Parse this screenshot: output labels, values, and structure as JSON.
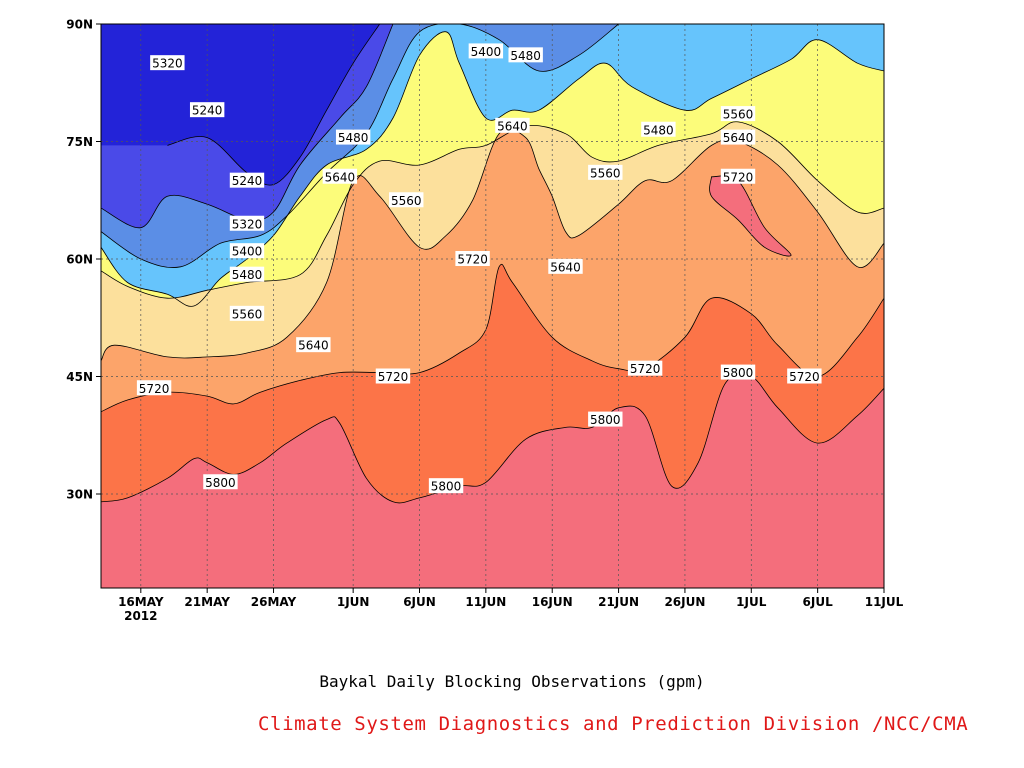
{
  "caption": {
    "title": "Baykal Daily Blocking Observations (gpm)",
    "credit": "Climate System Diagnostics and Prediction Division /NCC/CMA",
    "credit_color": "#e01818"
  },
  "chart_data": {
    "type": "contour",
    "title": "Baykal Daily Blocking Observations (gpm)",
    "xlabel": "",
    "ylabel": "",
    "x_range": [
      "2012-05-13",
      "2012-07-11"
    ],
    "y_range_deg": [
      18,
      90
    ],
    "x_ticks": [
      {
        "label": "16MAY",
        "sub": "2012",
        "date": "2012-05-16"
      },
      {
        "label": "21MAY",
        "date": "2012-05-21"
      },
      {
        "label": "26MAY",
        "date": "2012-05-26"
      },
      {
        "label": "1JUN",
        "date": "2012-06-01"
      },
      {
        "label": "6JUN",
        "date": "2012-06-06"
      },
      {
        "label": "11JUN",
        "date": "2012-06-11"
      },
      {
        "label": "16JUN",
        "date": "2012-06-16"
      },
      {
        "label": "21JUN",
        "date": "2012-06-21"
      },
      {
        "label": "26JUN",
        "date": "2012-06-26"
      },
      {
        "label": "1JUL",
        "date": "2012-07-01"
      },
      {
        "label": "6JUL",
        "date": "2012-07-06"
      },
      {
        "label": "11JUL",
        "date": "2012-07-11"
      }
    ],
    "y_ticks": [
      {
        "label": "30N",
        "lat": 30
      },
      {
        "label": "45N",
        "lat": 45
      },
      {
        "label": "60N",
        "lat": 60
      },
      {
        "label": "75N",
        "lat": 75
      },
      {
        "label": "90N",
        "lat": 90
      }
    ],
    "grid": true,
    "levels": [
      5240,
      5320,
      5400,
      5480,
      5560,
      5640,
      5720,
      5800
    ],
    "level_colors": [
      "#2323d8",
      "#4a4ae8",
      "#5b8ee6",
      "#66c4fc",
      "#fcfc7a",
      "#fce09c",
      "#fca46a",
      "#fc7448",
      "#f46e7c"
    ],
    "boundaries": [
      {
        "level": 5800,
        "points": [
          [
            "2012-05-13",
            29
          ],
          [
            "2012-05-15",
            29.5
          ],
          [
            "2012-05-18",
            32
          ],
          [
            "2012-05-20",
            34.5
          ],
          [
            "2012-05-21",
            34
          ],
          [
            "2012-05-23",
            32.5
          ],
          [
            "2012-05-25",
            34
          ],
          [
            "2012-05-27",
            36.5
          ],
          [
            "2012-05-30",
            39.5
          ],
          [
            "2012-05-31",
            39
          ],
          [
            "2012-06-02",
            32
          ],
          [
            "2012-06-04",
            29
          ],
          [
            "2012-06-06",
            29.5
          ],
          [
            "2012-06-09",
            31
          ],
          [
            "2012-06-11",
            31.5
          ],
          [
            "2012-06-14",
            37
          ],
          [
            "2012-06-17",
            38.5
          ],
          [
            "2012-06-19",
            38.5
          ],
          [
            "2012-06-21",
            41
          ],
          [
            "2012-06-23",
            40
          ],
          [
            "2012-06-25",
            31
          ],
          [
            "2012-06-27",
            34
          ],
          [
            "2012-06-29",
            44
          ],
          [
            "2012-07-01",
            45
          ],
          [
            "2012-07-03",
            41
          ],
          [
            "2012-07-06",
            36.5
          ],
          [
            "2012-07-09",
            40
          ],
          [
            "2012-07-11",
            43.5
          ]
        ]
      },
      {
        "level": 5720,
        "points": [
          [
            "2012-05-13",
            40.5
          ],
          [
            "2012-05-15",
            42
          ],
          [
            "2012-05-18",
            43
          ],
          [
            "2012-05-21",
            42.5
          ],
          [
            "2012-05-23",
            41.5
          ],
          [
            "2012-05-25",
            43
          ],
          [
            "2012-05-28",
            44.5
          ],
          [
            "2012-05-31",
            45.5
          ],
          [
            "2012-06-03",
            45.5
          ],
          [
            "2012-06-06",
            45.5
          ],
          [
            "2012-06-09",
            48
          ],
          [
            "2012-06-11",
            51
          ],
          [
            "2012-06-12",
            59
          ],
          [
            "2012-06-13",
            57
          ],
          [
            "2012-06-16",
            50
          ],
          [
            "2012-06-19",
            47
          ],
          [
            "2012-06-21",
            46
          ],
          [
            "2012-06-23",
            46
          ],
          [
            "2012-06-26",
            50
          ],
          [
            "2012-06-28",
            55
          ],
          [
            "2012-07-01",
            53
          ],
          [
            "2012-07-03",
            49
          ],
          [
            "2012-07-06",
            45
          ],
          [
            "2012-07-09",
            50
          ],
          [
            "2012-07-11",
            55
          ]
        ]
      },
      {
        "level": 5640,
        "points": [
          [
            "2012-05-13",
            47
          ],
          [
            "2012-05-14",
            49
          ],
          [
            "2012-05-18",
            47.5
          ],
          [
            "2012-05-21",
            47.5
          ],
          [
            "2012-05-24",
            48
          ],
          [
            "2012-05-27",
            50
          ],
          [
            "2012-05-30",
            57
          ],
          [
            "2012-06-01",
            70
          ],
          [
            "2012-06-03",
            68
          ],
          [
            "2012-06-06",
            61.5
          ],
          [
            "2012-06-08",
            63
          ],
          [
            "2012-06-10",
            67.5
          ],
          [
            "2012-06-12",
            76
          ],
          [
            "2012-06-14",
            75.5
          ],
          [
            "2012-06-15",
            71.5
          ],
          [
            "2012-06-16",
            68
          ],
          [
            "2012-06-17",
            63.5
          ],
          [
            "2012-06-18",
            63
          ],
          [
            "2012-06-21",
            67
          ],
          [
            "2012-06-23",
            70
          ],
          [
            "2012-06-25",
            70
          ],
          [
            "2012-06-28",
            74.5
          ],
          [
            "2012-06-30",
            75
          ],
          [
            "2012-07-03",
            72
          ],
          [
            "2012-07-06",
            66
          ],
          [
            "2012-07-09",
            59
          ],
          [
            "2012-07-11",
            62
          ]
        ]
      },
      {
        "level": 5560,
        "points": [
          [
            "2012-05-13",
            58.5
          ],
          [
            "2012-05-15",
            56.5
          ],
          [
            "2012-05-18",
            55
          ],
          [
            "2012-05-21",
            56
          ],
          [
            "2012-05-24",
            57
          ],
          [
            "2012-05-28",
            58
          ],
          [
            "2012-05-30",
            63
          ],
          [
            "2012-06-01",
            69.5
          ],
          [
            "2012-06-03",
            72.5
          ],
          [
            "2012-06-06",
            72
          ],
          [
            "2012-06-09",
            74
          ],
          [
            "2012-06-11",
            74.5
          ],
          [
            "2012-06-14",
            77
          ],
          [
            "2012-06-17",
            76
          ],
          [
            "2012-06-19",
            73
          ],
          [
            "2012-06-21",
            72.5
          ],
          [
            "2012-06-24",
            74.5
          ],
          [
            "2012-06-28",
            76
          ],
          [
            "2012-06-30",
            77.5
          ],
          [
            "2012-07-03",
            75
          ],
          [
            "2012-07-06",
            70
          ],
          [
            "2012-07-09",
            66
          ],
          [
            "2012-07-11",
            66.5
          ]
        ]
      },
      {
        "level": 5480,
        "points": [
          [
            "2012-05-13",
            61.5
          ],
          [
            "2012-05-15",
            57
          ],
          [
            "2012-05-18",
            55.5
          ],
          [
            "2012-05-20",
            54
          ],
          [
            "2012-05-22",
            57.5
          ],
          [
            "2012-05-24",
            60
          ],
          [
            "2012-05-26",
            63
          ],
          [
            "2012-05-28",
            68
          ],
          [
            "2012-05-30",
            72
          ],
          [
            "2012-06-02",
            74
          ],
          [
            "2012-06-04",
            78
          ],
          [
            "2012-06-06",
            86
          ],
          [
            "2012-06-08",
            89
          ],
          [
            "2012-06-09",
            85
          ],
          [
            "2012-06-11",
            78
          ],
          [
            "2012-06-13",
            79
          ],
          [
            "2012-06-15",
            79
          ],
          [
            "2012-06-18",
            83
          ],
          [
            "2012-06-20",
            85
          ],
          [
            "2012-06-22",
            82
          ],
          [
            "2012-06-26",
            79
          ],
          [
            "2012-06-28",
            80.5
          ],
          [
            "2012-07-01",
            83
          ],
          [
            "2012-07-04",
            85.5
          ],
          [
            "2012-07-06",
            88
          ],
          [
            "2012-07-09",
            85
          ],
          [
            "2012-07-11",
            84
          ]
        ]
      },
      {
        "level": 5400,
        "points": [
          [
            "2012-05-13",
            63.5
          ],
          [
            "2012-05-16",
            60
          ],
          [
            "2012-05-19",
            59
          ],
          [
            "2012-05-22",
            62
          ],
          [
            "2012-05-25",
            63
          ],
          [
            "2012-05-27",
            65.5
          ],
          [
            "2012-05-30",
            71
          ],
          [
            "2012-06-02",
            76
          ],
          [
            "2012-06-04",
            83
          ],
          [
            "2012-06-06",
            89
          ],
          [
            "2012-06-09",
            90
          ],
          [
            "2012-06-12",
            88
          ],
          [
            "2012-06-15",
            84
          ],
          [
            "2012-06-18",
            86
          ],
          [
            "2012-06-21",
            90
          ]
        ]
      },
      {
        "level": 5320,
        "points": [
          [
            "2012-05-13",
            66.5
          ],
          [
            "2012-05-16",
            64
          ],
          [
            "2012-05-18",
            68
          ],
          [
            "2012-05-21",
            67
          ],
          [
            "2012-05-24",
            65
          ],
          [
            "2012-05-26",
            66
          ],
          [
            "2012-05-28",
            72
          ],
          [
            "2012-05-31",
            78
          ],
          [
            "2012-06-02",
            82
          ],
          [
            "2012-06-04",
            90
          ]
        ]
      },
      {
        "level": 5240,
        "points": [
          [
            "2012-05-18",
            74.5
          ],
          [
            "2012-05-21",
            75.5
          ],
          [
            "2012-05-24",
            71
          ],
          [
            "2012-05-26",
            69.5
          ],
          [
            "2012-05-28",
            73
          ],
          [
            "2012-05-30",
            79
          ],
          [
            "2012-06-01",
            85
          ],
          [
            "2012-06-03",
            90
          ]
        ]
      }
    ],
    "isolated_features": [
      {
        "level": 5800,
        "points": [
          [
            "2012-06-28",
            70.5
          ],
          [
            "2012-06-30",
            70
          ],
          [
            "2012-07-02",
            64
          ],
          [
            "2012-07-04",
            60.5
          ],
          [
            "2012-07-02",
            61.5
          ],
          [
            "2012-06-30",
            65
          ],
          [
            "2012-06-28",
            68
          ]
        ]
      }
    ],
    "contour_labels": [
      {
        "text": "5320",
        "date": "2012-05-18",
        "lat": 85
      },
      {
        "text": "5240",
        "date": "2012-05-21",
        "lat": 79
      },
      {
        "text": "5240",
        "date": "2012-05-24",
        "lat": 70
      },
      {
        "text": "5320",
        "date": "2012-05-24",
        "lat": 64.5
      },
      {
        "text": "5400",
        "date": "2012-05-24",
        "lat": 61
      },
      {
        "text": "5480",
        "date": "2012-05-24",
        "lat": 58
      },
      {
        "text": "5560",
        "date": "2012-05-24",
        "lat": 53
      },
      {
        "text": "5640",
        "date": "2012-05-29",
        "lat": 49
      },
      {
        "text": "5720",
        "date": "2012-05-17",
        "lat": 43.5
      },
      {
        "text": "5800",
        "date": "2012-05-22",
        "lat": 31.5
      },
      {
        "text": "5480",
        "date": "2012-06-01",
        "lat": 75.5
      },
      {
        "text": "5640",
        "date": "2012-05-31",
        "lat": 70.5
      },
      {
        "text": "5560",
        "date": "2012-06-05",
        "lat": 67.5
      },
      {
        "text": "5720",
        "date": "2012-06-04",
        "lat": 45
      },
      {
        "text": "5800",
        "date": "2012-06-08",
        "lat": 31
      },
      {
        "text": "5400",
        "date": "2012-06-11",
        "lat": 86.5
      },
      {
        "text": "5480",
        "date": "2012-06-14",
        "lat": 86
      },
      {
        "text": "5640",
        "date": "2012-06-13",
        "lat": 77
      },
      {
        "text": "5720",
        "date": "2012-06-10",
        "lat": 60
      },
      {
        "text": "5640",
        "date": "2012-06-17",
        "lat": 59
      },
      {
        "text": "5560",
        "date": "2012-06-20",
        "lat": 71
      },
      {
        "text": "5480",
        "date": "2012-06-24",
        "lat": 76.5
      },
      {
        "text": "5720",
        "date": "2012-06-23",
        "lat": 46
      },
      {
        "text": "5800",
        "date": "2012-06-20",
        "lat": 39.5
      },
      {
        "text": "5560",
        "date": "2012-06-30",
        "lat": 78.5
      },
      {
        "text": "5640",
        "date": "2012-06-30",
        "lat": 75.5
      },
      {
        "text": "5720",
        "date": "2012-06-30",
        "lat": 70.5
      },
      {
        "text": "5800",
        "date": "2012-06-30",
        "lat": 45.5
      },
      {
        "text": "5720",
        "date": "2012-07-05",
        "lat": 45
      }
    ]
  }
}
